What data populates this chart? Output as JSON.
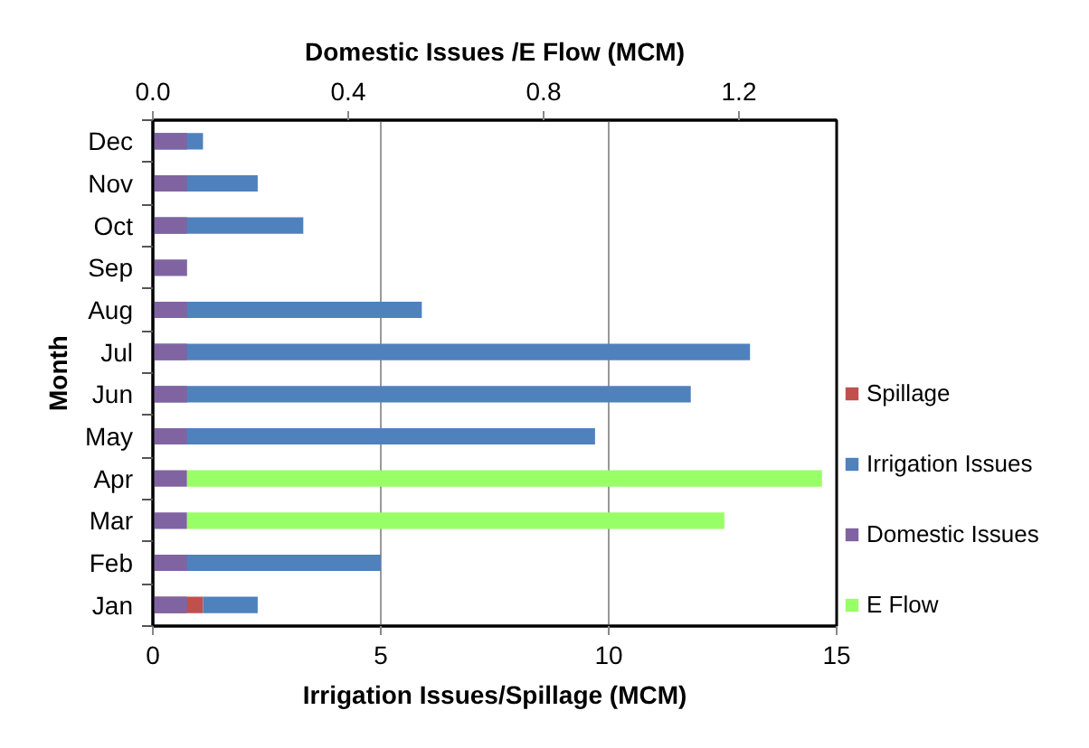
{
  "chart_data": {
    "type": "bar",
    "orientation": "horizontal",
    "categories": [
      "Dec",
      "Nov",
      "Oct",
      "Sep",
      "Aug",
      "Jul",
      "Jun",
      "May",
      "Apr",
      "Mar",
      "Feb",
      "Jan"
    ],
    "series": [
      {
        "name": "Spillage",
        "color": "#c0504d",
        "values": [
          null,
          null,
          null,
          null,
          null,
          null,
          null,
          null,
          null,
          null,
          null,
          1.1
        ]
      },
      {
        "name": "Irrigation Issues",
        "color": "#4f81bd",
        "values": [
          1.1,
          2.3,
          3.3,
          null,
          5.9,
          13.1,
          11.8,
          9.7,
          null,
          null,
          5.0,
          1.2
        ],
        "base": [
          0,
          0,
          0,
          null,
          0,
          0,
          0,
          0,
          null,
          null,
          0,
          1.1
        ]
      },
      {
        "name": "Domestic Issues",
        "color": "#8064a2",
        "axis": "x2",
        "values": [
          0.07,
          0.07,
          0.07,
          0.07,
          0.07,
          0.07,
          0.07,
          0.07,
          0.07,
          0.07,
          0.07,
          0.07
        ]
      },
      {
        "name": "E Flow",
        "color": "#99ff66",
        "axis": "x2",
        "values": [
          null,
          null,
          null,
          null,
          null,
          null,
          null,
          null,
          1.3,
          1.1,
          null,
          null
        ],
        "base": [
          null,
          null,
          null,
          null,
          null,
          null,
          null,
          null,
          0.07,
          0.07,
          null,
          null
        ]
      }
    ],
    "xlabel": "Irrigation Issues/Spillage (MCM)",
    "x2label": "Domestic Issues /E Flow (MCM)",
    "ylabel": "Month",
    "xlim": [
      0,
      15
    ],
    "xticks": [
      0,
      5,
      10,
      15
    ],
    "x2lim": [
      0,
      1.4
    ],
    "x2ticks": [
      {
        "value": 0,
        "label": "0.0"
      },
      0.4,
      0.8,
      1.2
    ],
    "grid": "x",
    "legend": "right"
  }
}
